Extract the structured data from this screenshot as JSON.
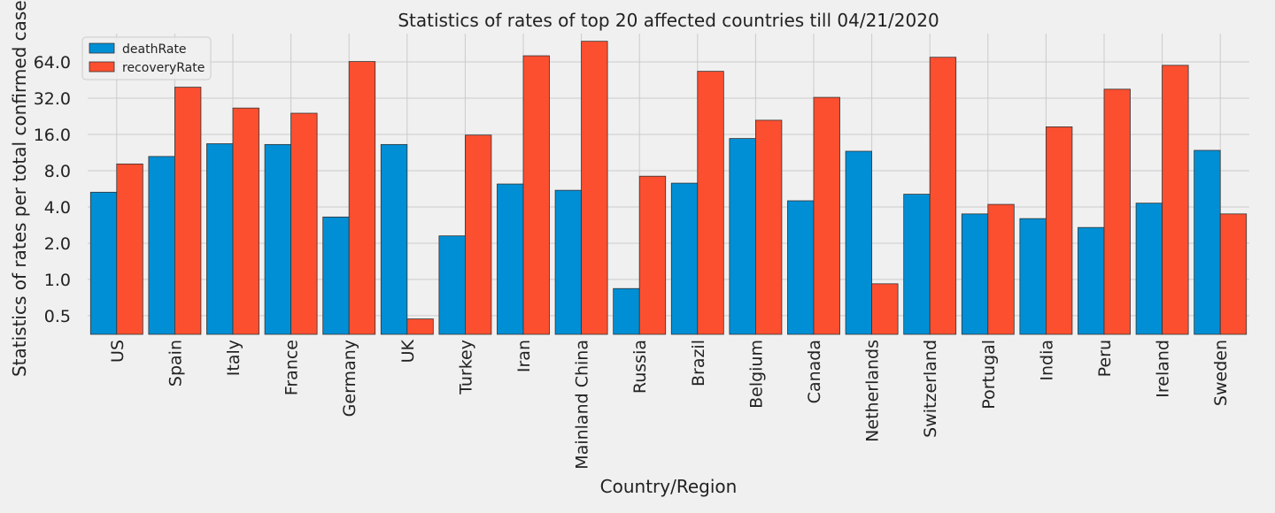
{
  "chart_data": {
    "type": "bar",
    "title": "Statistics of rates of top 20 affected countries till 04/21/2020",
    "xlabel": "Country/Region",
    "ylabel": "Statistics of rates per total confirmed cases",
    "yscale": "log2",
    "ylim": [
      0.35,
      110
    ],
    "yticks": [
      0.5,
      1.0,
      2.0,
      4.0,
      8.0,
      16.0,
      32.0,
      64.0
    ],
    "ytick_labels": [
      "0.5",
      "1.0",
      "2.0",
      "4.0",
      "8.0",
      "16.0",
      "32.0",
      "64.0"
    ],
    "grid": true,
    "legend_position": "top-left",
    "categories": [
      "US",
      "Spain",
      "Italy",
      "France",
      "Germany",
      "UK",
      "Turkey",
      "Iran",
      "Mainland China",
      "Russia",
      "Brazil",
      "Belgium",
      "Canada",
      "Netherlands",
      "Switzerland",
      "Portugal",
      "India",
      "Peru",
      "Ireland",
      "Sweden"
    ],
    "series": [
      {
        "name": "deathRate",
        "color": "#008fd5",
        "values": [
          5.3,
          10.5,
          13.4,
          13.2,
          3.3,
          13.2,
          2.3,
          6.2,
          5.5,
          0.84,
          6.3,
          14.8,
          4.5,
          11.6,
          5.1,
          3.5,
          3.2,
          2.7,
          4.3,
          11.8
        ]
      },
      {
        "name": "recoveryRate",
        "color": "#fc4f30",
        "values": [
          9.1,
          39.5,
          26.5,
          24.0,
          64.5,
          0.47,
          15.8,
          72.0,
          95.0,
          7.2,
          53.5,
          21.0,
          32.5,
          0.92,
          70.0,
          4.2,
          18.5,
          38.0,
          60.0,
          3.5
        ]
      }
    ]
  }
}
